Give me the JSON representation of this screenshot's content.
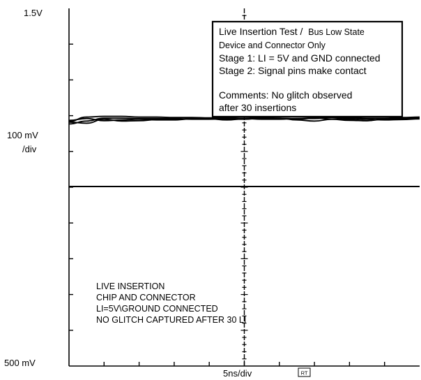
{
  "chart_data": {
    "type": "line",
    "title": "",
    "left_labels": {
      "top": "1.5V",
      "scale_line1": "100 mV",
      "scale_line2": "/div",
      "bottom": "500 mV"
    },
    "bottom_labels": {
      "timebase": "5ns/div",
      "mode_badge": "RT"
    },
    "divisions": {
      "x": 10,
      "y": 10
    },
    "minor_ticks_per_division": 5,
    "grid": false,
    "series": [
      {
        "x": [
          0,
          0.5,
          1,
          1.5,
          2,
          2.5,
          3,
          3.5,
          4,
          4.5,
          5,
          5.5,
          6,
          6.5,
          7,
          7.5,
          8,
          8.5,
          9,
          9.5,
          10
        ],
        "y": [
          6.84,
          6.96,
          6.98,
          6.98,
          6.96,
          6.96,
          6.95,
          6.95,
          6.94,
          6.94,
          6.93,
          6.95,
          6.93,
          6.92,
          6.92,
          6.95,
          6.95,
          6.93,
          6.93,
          6.95,
          6.96
        ]
      },
      {
        "x": [
          0,
          0.5,
          1,
          1.5,
          2,
          2.5,
          3,
          3.5,
          4,
          4.5,
          5,
          5.5,
          6,
          6.5,
          7,
          7.5,
          8,
          8.5,
          9,
          9.5,
          10
        ],
        "y": [
          6.77,
          6.85,
          6.93,
          6.93,
          6.92,
          6.92,
          6.92,
          6.9,
          6.9,
          6.92,
          6.92,
          6.9,
          6.9,
          6.92,
          6.94,
          6.9,
          6.87,
          6.86,
          6.9,
          6.93,
          6.94
        ]
      },
      {
        "x": [
          0,
          0.5,
          1,
          1.5,
          2,
          2.5,
          3,
          3.5,
          4,
          4.5,
          5,
          5.5,
          6,
          6.5,
          7,
          7.5,
          8,
          8.5,
          9,
          9.5,
          10
        ],
        "y": [
          6.87,
          6.92,
          6.86,
          6.88,
          6.9,
          6.88,
          6.88,
          6.91,
          6.92,
          6.9,
          6.9,
          6.93,
          6.93,
          6.88,
          6.85,
          6.9,
          6.92,
          6.9,
          6.88,
          6.89,
          6.91
        ]
      },
      {
        "x": [
          0,
          0.5,
          1,
          1.5,
          2,
          2.5,
          3,
          3.5,
          4,
          4.5,
          5,
          5.5,
          6,
          6.5,
          7,
          7.5,
          8,
          8.5,
          9,
          9.5,
          10
        ],
        "y": [
          6.82,
          6.79,
          6.9,
          6.85,
          6.86,
          6.89,
          6.9,
          6.92,
          6.91,
          6.88,
          6.91,
          6.93,
          6.92,
          6.9,
          6.93,
          6.95,
          6.89,
          6.86,
          6.92,
          6.9,
          6.92
        ]
      }
    ]
  },
  "lower_annotation": {
    "line1": "LIVE INSERTION",
    "line2": "CHIP AND CONNECTOR",
    "line3": "LI=5V\\GROUND CONNECTED",
    "line4": "NO GLITCH CAPTURED AFTER 30 LI"
  },
  "info_box": {
    "line1a": "Live Insertion Test /",
    "line1b": "Bus Low State",
    "line2": "Device and Connector Only",
    "line3": "Stage 1: LI = 5V and GND connected",
    "line4": "Stage 2: Signal pins make contact",
    "line5": "Comments: No glitch observed",
    "line6": "after 30 insertions"
  }
}
